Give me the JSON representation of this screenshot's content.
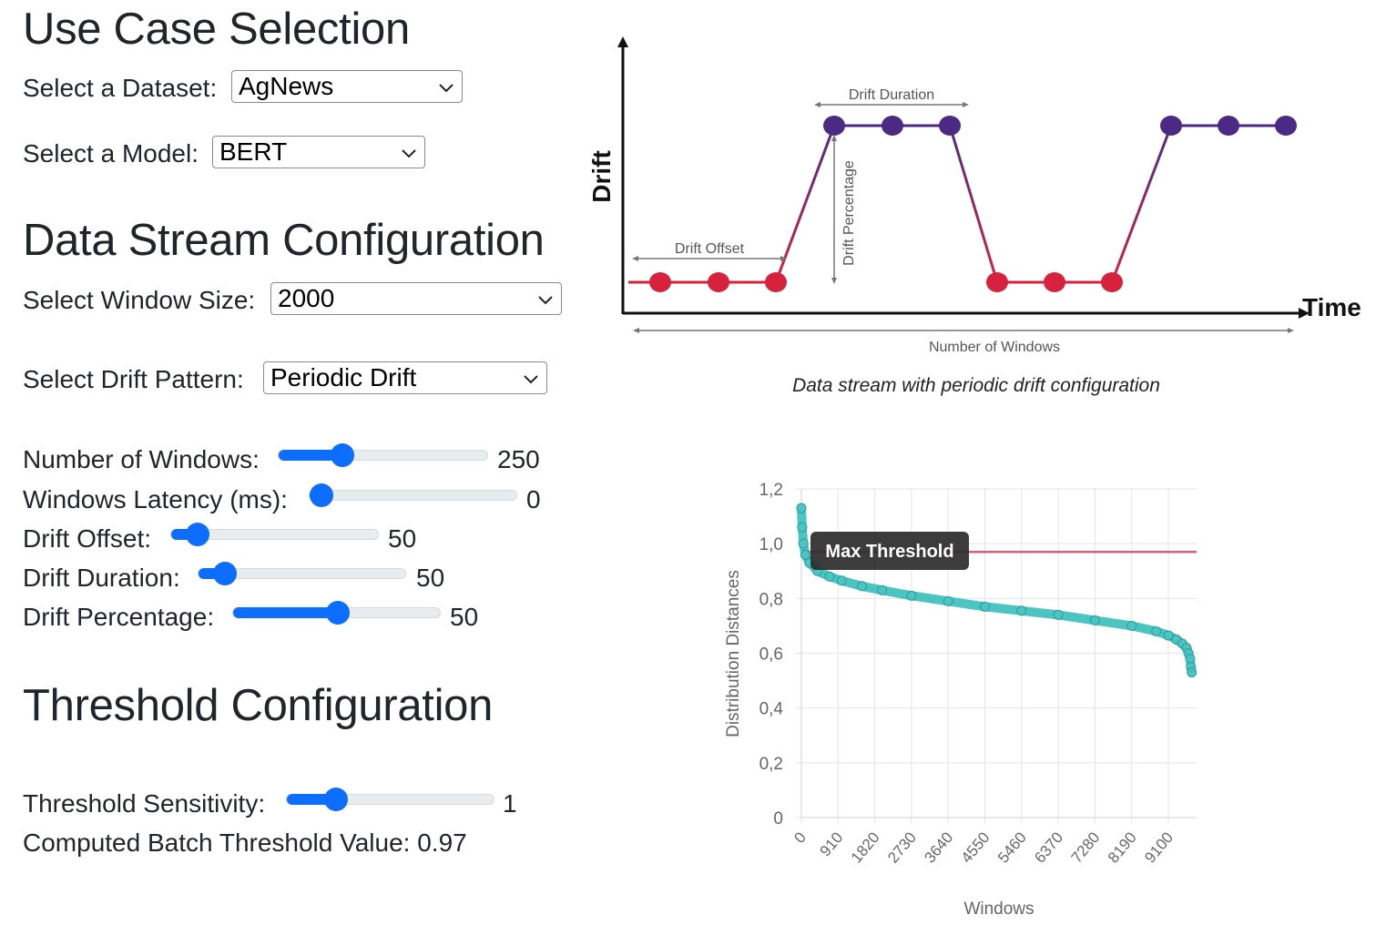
{
  "use_case": {
    "heading": "Use Case Selection",
    "dataset_label": "Select a Dataset:",
    "dataset_value": "AgNews",
    "model_label": "Select a Model:",
    "model_value": "BERT"
  },
  "stream": {
    "heading": "Data Stream Configuration",
    "window_size_label": "Select Window Size:",
    "window_size_value": "2000",
    "drift_pattern_label": "Select Drift Pattern:",
    "drift_pattern_value": "Periodic Drift",
    "sliders": [
      {
        "label": "Number of Windows:",
        "value": "250",
        "fraction": 0.28
      },
      {
        "label": "Windows Latency (ms):",
        "value": "0",
        "fraction": 0.0
      },
      {
        "label": "Drift Offset:",
        "value": "50",
        "fraction": 0.08
      },
      {
        "label": "Drift Duration:",
        "value": "50",
        "fraction": 0.08
      },
      {
        "label": "Drift Percentage:",
        "value": "50",
        "fraction": 0.5
      }
    ]
  },
  "threshold": {
    "heading": "Threshold Configuration",
    "sensitivity_label": "Threshold Sensitivity:",
    "sensitivity_value": "1",
    "sensitivity_fraction": 0.2,
    "computed_text": "Computed Batch Threshold Value: 0.97"
  },
  "diagram": {
    "y_axis_label": "Drift",
    "x_axis_label": "Time",
    "drift_offset_label": "Drift Offset",
    "drift_duration_label": "Drift Duration",
    "drift_percentage_label": "Drift Percentage",
    "number_of_windows_label": "Number of Windows",
    "caption": "Data stream with periodic drift configuration",
    "low_color": "#d7223e",
    "high_color": "#4b2a86"
  },
  "chart_data": {
    "type": "scatter",
    "title": "",
    "xlabel": "Windows",
    "ylabel": "Distribution Distances",
    "xlim": [
      0,
      9800
    ],
    "ylim": [
      0,
      1.2
    ],
    "x_ticks": [
      "0",
      "910",
      "1820",
      "2730",
      "3640",
      "4550",
      "5460",
      "6370",
      "7280",
      "8190",
      "9100"
    ],
    "y_ticks": [
      "0",
      "0,2",
      "0,4",
      "0,6",
      "0,8",
      "1,0",
      "1,2"
    ],
    "threshold": {
      "name": "Max Threshold",
      "value": 0.97,
      "color": "#e05d7a"
    },
    "series": [
      {
        "color": "#4cc4c2",
        "x": [
          0,
          20,
          50,
          100,
          200,
          400,
          700,
          1000,
          1500,
          2000,
          2730,
          3640,
          4550,
          5460,
          6370,
          7280,
          8190,
          8800,
          9100,
          9300,
          9450,
          9550,
          9600,
          9640,
          9660,
          9680
        ],
        "y": [
          1.13,
          1.06,
          1.0,
          0.96,
          0.93,
          0.9,
          0.88,
          0.865,
          0.845,
          0.83,
          0.81,
          0.79,
          0.77,
          0.755,
          0.74,
          0.72,
          0.7,
          0.68,
          0.665,
          0.65,
          0.635,
          0.62,
          0.6,
          0.58,
          0.55,
          0.53
        ]
      }
    ]
  }
}
